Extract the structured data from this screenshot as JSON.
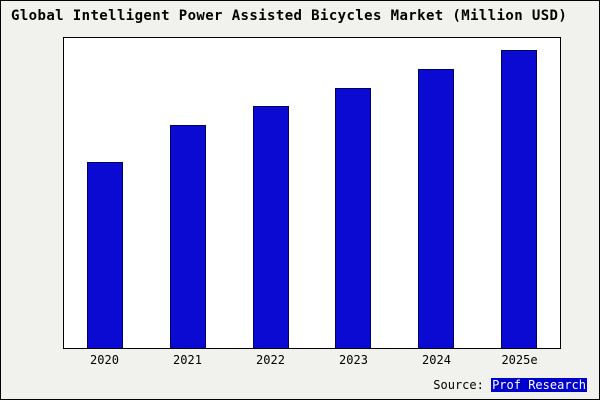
{
  "page": {
    "background": "#f1f1ee",
    "border_color": "#000000"
  },
  "chart_data": {
    "type": "bar",
    "title": "Global Intelligent Power Assisted Bicycles Market (Million USD)",
    "categories": [
      "2020",
      "2021",
      "2022",
      "2023",
      "2024",
      "2025e"
    ],
    "values": [
      60,
      72,
      78,
      84,
      90,
      96
    ],
    "ylim": [
      0,
      100
    ],
    "xlabel": "",
    "ylabel": "",
    "grid": false,
    "legend": false,
    "bar_color": "#0a0ad2",
    "bar_border_color": "#000060",
    "plot_background": "#ffffff"
  },
  "source": {
    "prefix": "Source: ",
    "brand": "Prof Research",
    "brand_background": "#0000cc",
    "brand_text_color": "#ffffff"
  }
}
